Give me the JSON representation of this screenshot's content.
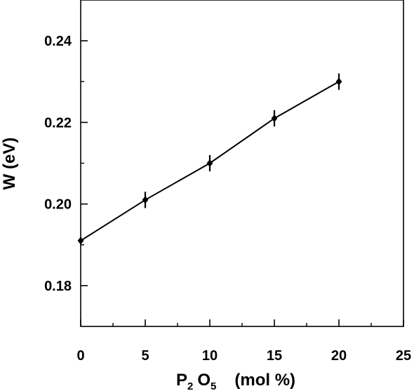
{
  "chart_data": {
    "type": "line",
    "title": "",
    "xlabel": {
      "prefix": "P",
      "sub1": "2",
      "mid": "O",
      "sub2": "5",
      "suffix": "(mol %)"
    },
    "ylabel": "W (eV)",
    "xlim": [
      0,
      25
    ],
    "ylim": [
      0.17,
      0.25
    ],
    "x_ticks": [
      {
        "value": 0,
        "label": "0"
      },
      {
        "value": 5,
        "label": "5"
      },
      {
        "value": 10,
        "label": "10"
      },
      {
        "value": 15,
        "label": "15"
      },
      {
        "value": 20,
        "label": "20"
      },
      {
        "value": 25,
        "label": "25"
      }
    ],
    "x_minor_ticks": [
      2.5,
      7.5,
      12.5,
      17.5,
      22.5
    ],
    "y_ticks": [
      {
        "value": 0.18,
        "label": "0.18"
      },
      {
        "value": 0.2,
        "label": "0.20"
      },
      {
        "value": 0.22,
        "label": "0.22"
      },
      {
        "value": 0.24,
        "label": "0.24"
      }
    ],
    "y_minor_ticks": [
      0.19,
      0.21,
      0.23
    ],
    "grid": false,
    "marker": "diamond",
    "color": "#000000",
    "series": [
      {
        "x": [
          0,
          5,
          10,
          15,
          20
        ],
        "y": [
          0.191,
          0.201,
          0.21,
          0.221,
          0.23
        ],
        "error": [
          0.0008,
          0.002,
          0.002,
          0.002,
          0.002
        ]
      }
    ]
  }
}
